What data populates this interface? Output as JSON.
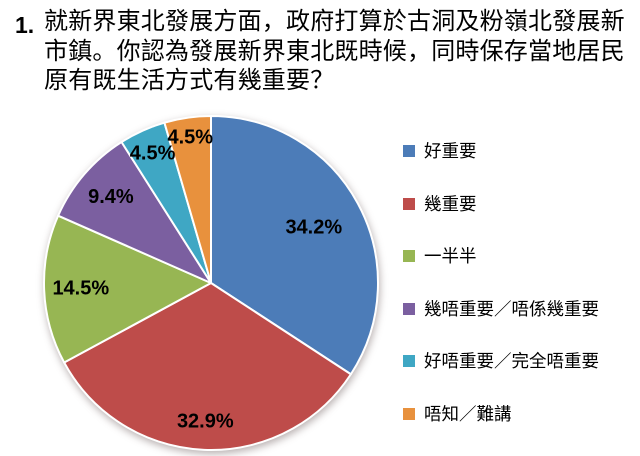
{
  "question": {
    "number": "1.",
    "text": "就新界東北發展方面，政府打算於古洞及粉嶺北發展新市鎮。你認為發展新界東北既時候，同時保存當地居民原有既生活方式有幾重要？"
  },
  "chart_data": {
    "type": "pie",
    "title": "",
    "legend_position": "right",
    "start_angle_deg": 0,
    "direction": "clockwise",
    "label_format": "percent",
    "slices": [
      {
        "label": "好重要",
        "value": 34.2,
        "display": "34.2%",
        "color": "#4C7CB8"
      },
      {
        "label": "幾重要",
        "value": 32.9,
        "display": "32.9%",
        "color": "#BE4C4A"
      },
      {
        "label": "一半半",
        "value": 14.5,
        "display": "14.5%",
        "color": "#97B653"
      },
      {
        "label": "幾唔重要／唔係幾重要",
        "value": 9.4,
        "display": "9.4%",
        "color": "#7B5FA0"
      },
      {
        "label": "好唔重要／完全唔重要",
        "value": 4.5,
        "display": "4.5%",
        "color": "#3FA7C4"
      },
      {
        "label": "唔知／難講",
        "value": 4.5,
        "display": "4.5%",
        "color": "#E8913D"
      }
    ]
  }
}
